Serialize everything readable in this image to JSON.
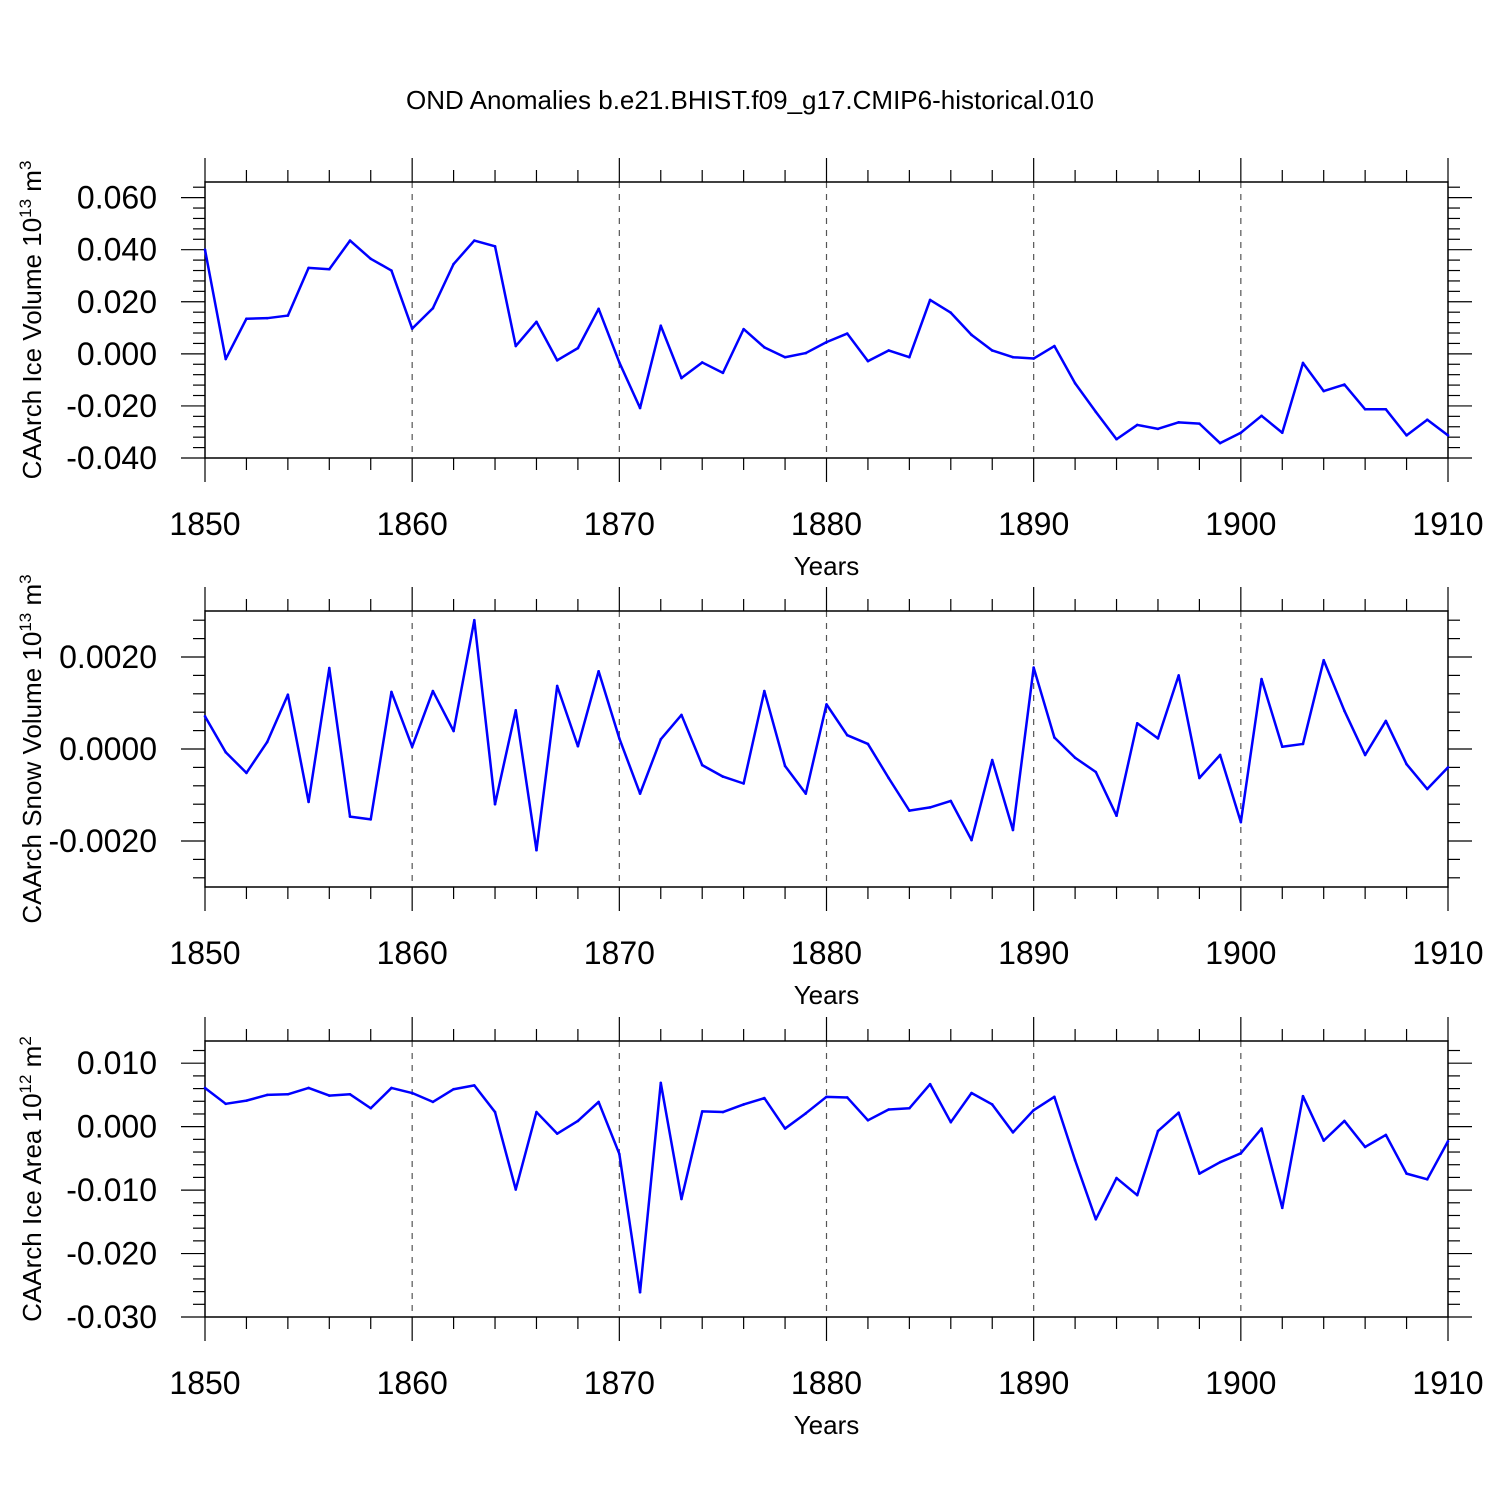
{
  "title": "OND Anomalies b.e21.BHIST.f09_g17.CMIP6-historical.010",
  "colors": {
    "line": "#0000ff",
    "axis": "#000000",
    "grid": "#555555"
  },
  "chart_data": [
    {
      "type": "line",
      "name": "ice-volume",
      "ylabel": "CAArch Ice Volume 10",
      "ylabel_exp": "13",
      "ylabel_unit": " m",
      "ylabel_unit_exp": "3",
      "xlabel": "Years",
      "xlim": [
        1850,
        1910
      ],
      "ylim": [
        -0.04,
        0.066
      ],
      "x_ticks": [
        1850,
        1860,
        1870,
        1880,
        1890,
        1900,
        1910
      ],
      "x_tick_labels": [
        "1850",
        "1860",
        "1870",
        "1880",
        "1890",
        "1900",
        "1910"
      ],
      "y_ticks": [
        0.06,
        0.04,
        0.02,
        0.0,
        -0.02,
        -0.04
      ],
      "y_tick_labels": [
        "0.060",
        "0.040",
        "0.020",
        "0.000",
        "-0.020",
        "-0.040"
      ],
      "x_start": 1850,
      "values": [
        0.04,
        -0.002,
        0.0135,
        0.0137,
        0.0147,
        0.033,
        0.0325,
        0.0435,
        0.0365,
        0.032,
        0.0097,
        0.0175,
        0.0345,
        0.0435,
        0.0413,
        0.003,
        0.0123,
        -0.0025,
        0.0022,
        0.0173,
        -0.0033,
        -0.0208,
        0.0108,
        -0.0093,
        -0.0033,
        -0.0073,
        0.0095,
        0.0025,
        -0.0013,
        0.0003,
        0.0045,
        0.0078,
        -0.0028,
        0.0013,
        -0.0013,
        0.0207,
        0.0158,
        0.0073,
        0.0013,
        -0.0013,
        -0.0018,
        0.003,
        -0.0113,
        -0.0223,
        -0.0328,
        -0.0273,
        -0.0288,
        -0.0263,
        -0.0268,
        -0.0343,
        -0.0303,
        -0.0238,
        -0.0303,
        -0.0035,
        -0.0143,
        -0.0118,
        -0.0213,
        -0.0213,
        -0.0313,
        -0.0253,
        -0.0313
      ]
    },
    {
      "type": "line",
      "name": "snow-volume",
      "ylabel": "CAArch Snow Volume 10",
      "ylabel_exp": "13",
      "ylabel_unit": " m",
      "ylabel_unit_exp": "3",
      "xlabel": "Years",
      "xlim": [
        1850,
        1910
      ],
      "ylim": [
        -0.003,
        0.003
      ],
      "x_ticks": [
        1850,
        1860,
        1870,
        1880,
        1890,
        1900,
        1910
      ],
      "x_tick_labels": [
        "1850",
        "1860",
        "1870",
        "1880",
        "1890",
        "1900",
        "1910"
      ],
      "y_ticks": [
        0.002,
        0.0,
        -0.002
      ],
      "y_tick_labels": [
        "0.0020",
        "0.0000",
        "-0.0020"
      ],
      "x_start": 1850,
      "values": [
        0.00071,
        -7e-05,
        -0.00052,
        0.00015,
        0.00118,
        -0.00115,
        0.00176,
        -0.00147,
        -0.00153,
        0.00124,
        5e-05,
        0.00126,
        0.00039,
        0.0028,
        -0.0012,
        0.00084,
        -0.0022,
        0.00137,
        6e-05,
        0.00169,
        0.00023,
        -0.00097,
        0.00021,
        0.00074,
        -0.00035,
        -0.0006,
        -0.00075,
        0.00126,
        -0.00037,
        -0.00097,
        0.00097,
        0.0003,
        0.00011,
        -0.00063,
        -0.00134,
        -0.00127,
        -0.00113,
        -0.00198,
        -0.00024,
        -0.00176,
        0.00177,
        0.00025,
        -0.00019,
        -0.0005,
        -0.00145,
        0.00056,
        0.00023,
        0.0016,
        -0.00063,
        -0.00013,
        -0.00159,
        0.00152,
        5e-05,
        0.00011,
        0.00193,
        0.00083,
        -0.00013,
        0.00061,
        -0.00033,
        -0.00087,
        -0.0004
      ]
    },
    {
      "type": "line",
      "name": "ice-area",
      "ylabel": "CAArch Ice Area 10",
      "ylabel_exp": "12",
      "ylabel_unit": " m",
      "ylabel_unit_exp": "2",
      "xlabel": "Years",
      "xlim": [
        1850,
        1910
      ],
      "ylim": [
        -0.03,
        0.0135
      ],
      "x_ticks": [
        1850,
        1860,
        1870,
        1880,
        1890,
        1900,
        1910
      ],
      "x_tick_labels": [
        "1850",
        "1860",
        "1870",
        "1880",
        "1890",
        "1900",
        "1910"
      ],
      "y_ticks": [
        0.01,
        0.0,
        -0.01,
        -0.02,
        -0.03
      ],
      "y_tick_labels": [
        "0.010",
        "0.000",
        "-0.010",
        "-0.020",
        "-0.030"
      ],
      "x_start": 1850,
      "values": [
        0.0061,
        0.0036,
        0.0041,
        0.005,
        0.0051,
        0.0061,
        0.0049,
        0.0051,
        0.0029,
        0.0061,
        0.0053,
        0.0039,
        0.0059,
        0.0065,
        0.0023,
        -0.0099,
        0.0023,
        -0.0011,
        0.0009,
        0.0039,
        -0.0043,
        -0.0261,
        0.0069,
        -0.0114,
        0.0024,
        0.0023,
        0.0035,
        0.0045,
        -0.0003,
        0.0021,
        0.0047,
        0.0046,
        0.001,
        0.0027,
        0.0029,
        0.0067,
        0.0007,
        0.0053,
        0.0035,
        -0.0009,
        0.0026,
        0.0047,
        -0.0053,
        -0.0146,
        -0.0081,
        -0.0108,
        -0.0007,
        0.0022,
        -0.0074,
        -0.0056,
        -0.0042,
        -0.0003,
        -0.0128,
        0.0048,
        -0.0022,
        0.0009,
        -0.0032,
        -0.0013,
        -0.0074,
        -0.0083,
        -0.0023
      ]
    }
  ]
}
